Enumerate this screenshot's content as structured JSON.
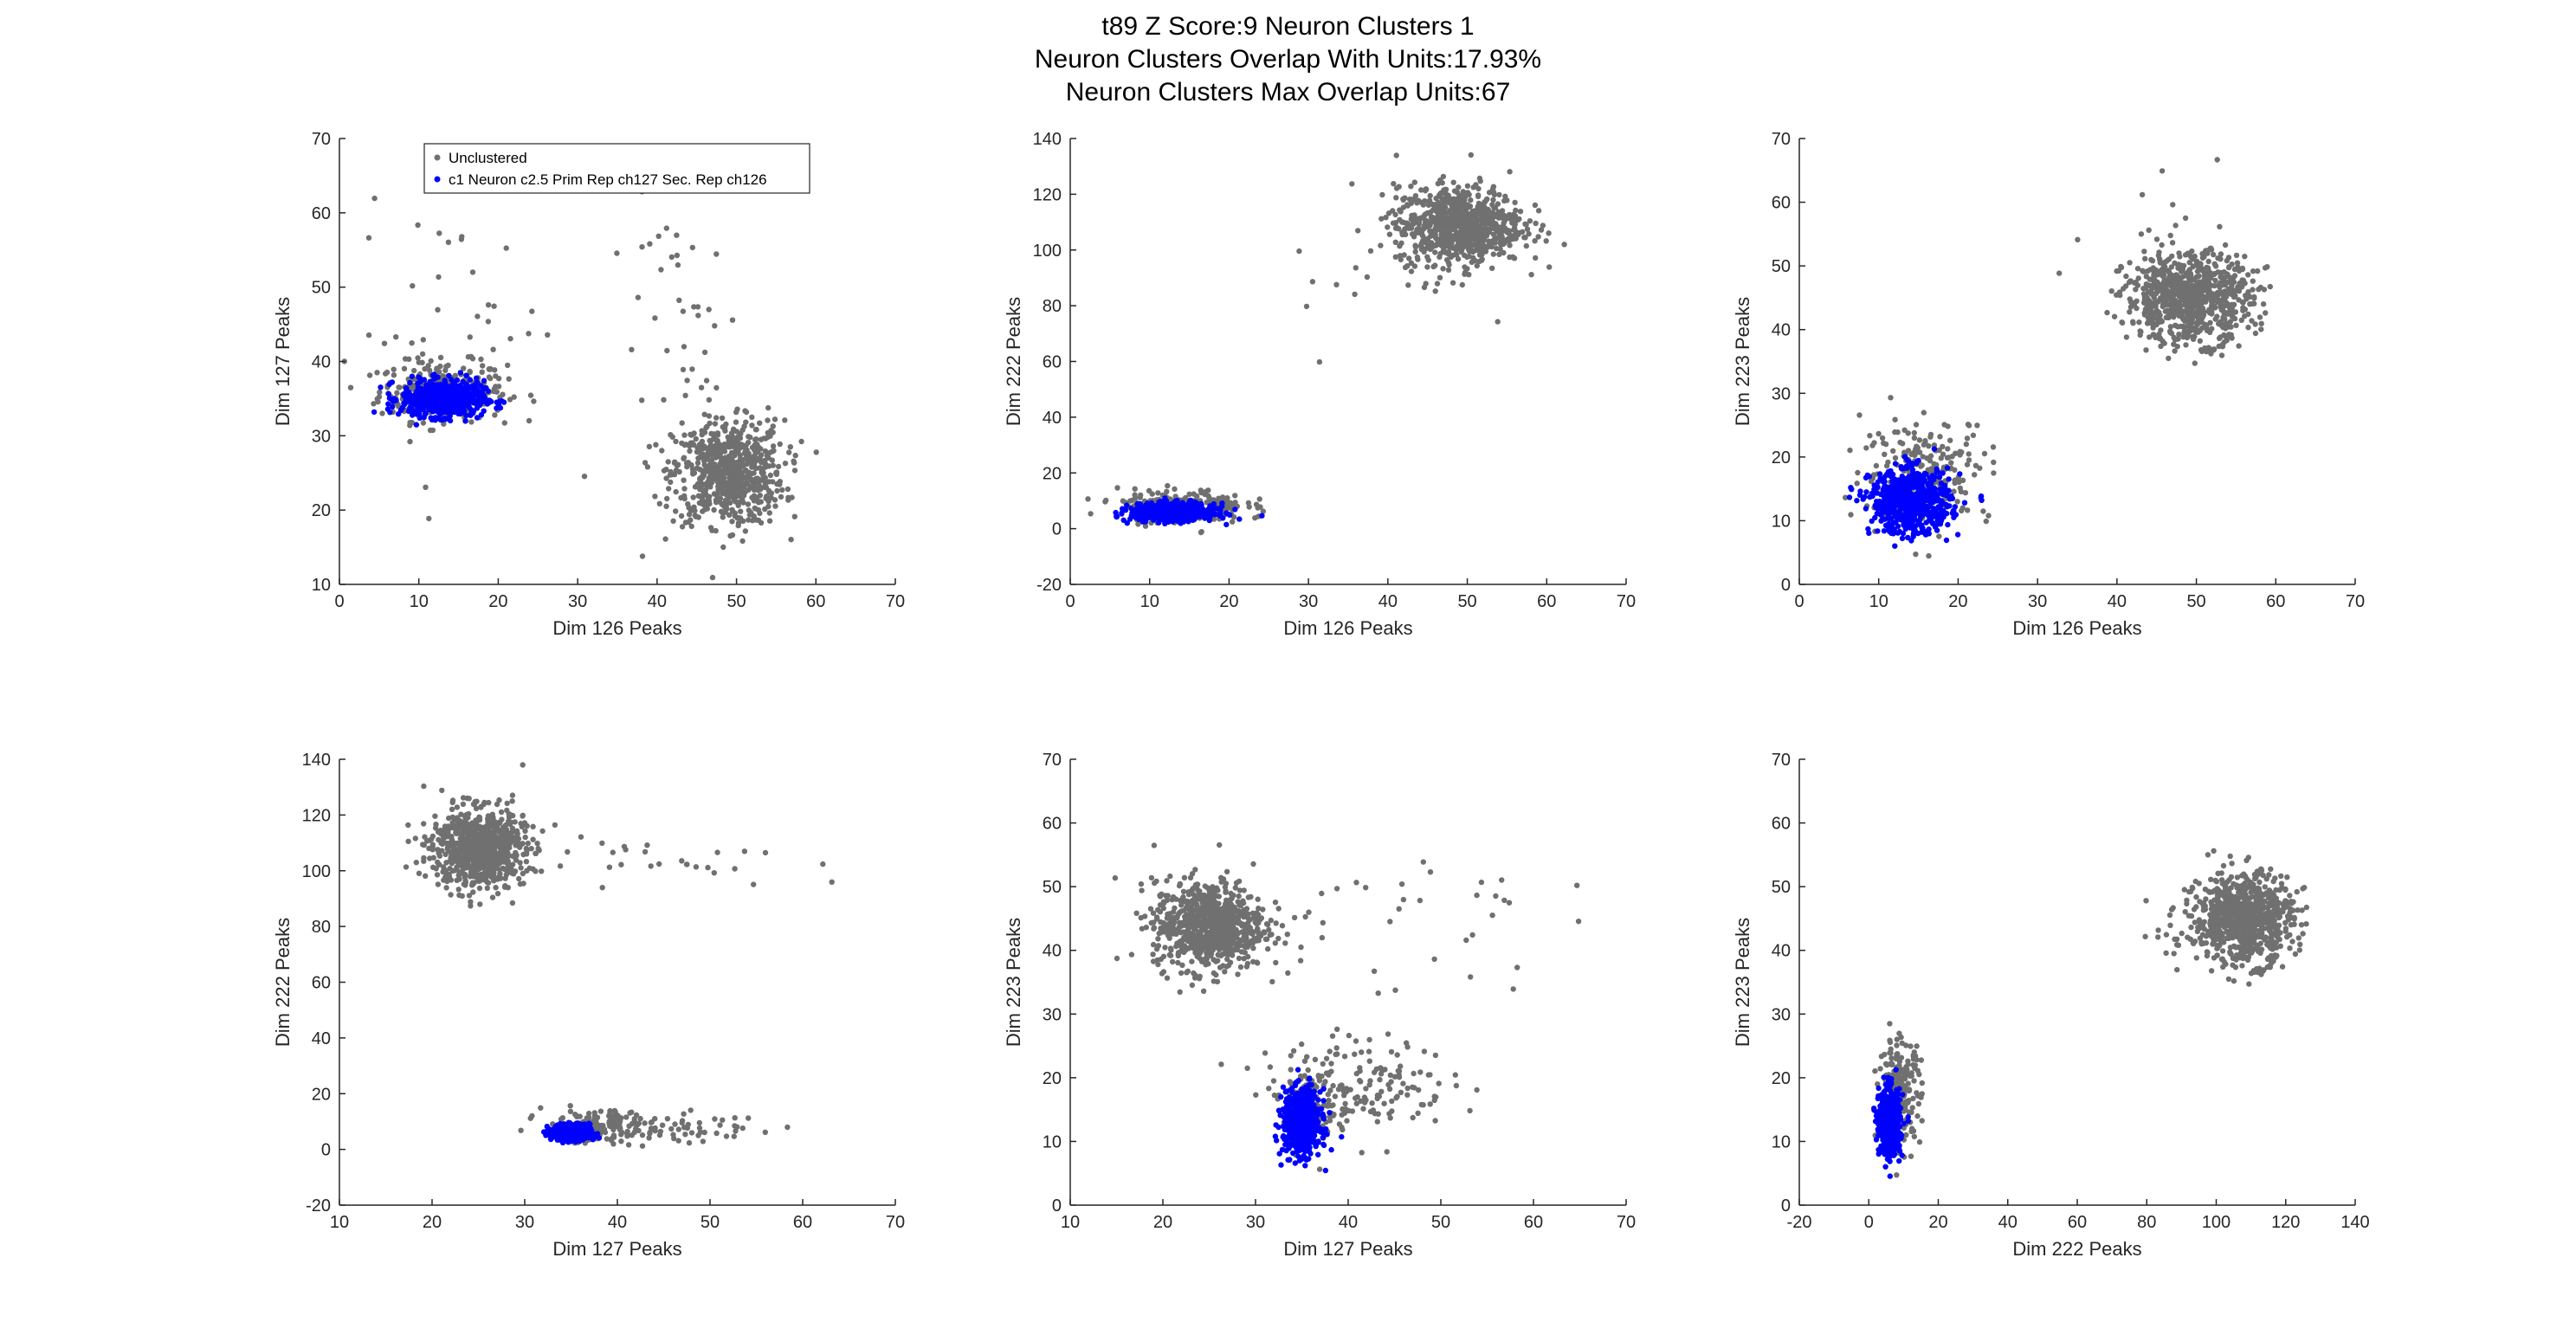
{
  "figure": {
    "title_lines": [
      "t89 Z Score:9 Neuron Clusters 1",
      "Neuron Clusters Overlap With Units:17.93%",
      "Neuron Clusters Max Overlap Units:67"
    ]
  },
  "colors": {
    "unclustered": "#707070",
    "cluster": "#0000ff",
    "axis": "#262626",
    "background": "#ffffff"
  },
  "legend": {
    "location": "top-left of first subplot",
    "entries": [
      "Unclustered",
      "c1 Neuron c2.5 Prim Rep ch127 Sec. Rep ch126"
    ]
  },
  "chart_data": [
    {
      "type": "scatter",
      "xlabel": "Dim 126 Peaks",
      "ylabel": "Dim 127 Peaks",
      "xlim": [
        0,
        70
      ],
      "ylim": [
        10,
        70
      ],
      "xticks": [
        0,
        10,
        20,
        30,
        40,
        50,
        60,
        70
      ],
      "yticks": [
        10,
        20,
        30,
        40,
        50,
        60,
        70
      ],
      "series": [
        {
          "name": "Unclustered",
          "color": "#707070",
          "clusters": [
            {
              "center": [
                13,
                36
              ],
              "spread": [
                4,
                2
              ],
              "n": 300
            },
            {
              "center": [
                49,
                25
              ],
              "spread": [
                3.5,
                3.5
              ],
              "n": 700
            },
            {
              "center": [
                14,
                44
              ],
              "spread": [
                6,
                8
              ],
              "n": 40
            },
            {
              "center": [
                45,
                42
              ],
              "spread": [
                5,
                10
              ],
              "n": 45
            }
          ]
        },
        {
          "name": "c1 Neuron c2.5 Prim Rep ch127 Sec. Rep ch126",
          "color": "#0000ff",
          "clusters": [
            {
              "center": [
                13,
                35
              ],
              "spread": [
                2.6,
                1.2
              ],
              "n": 650
            }
          ]
        }
      ]
    },
    {
      "type": "scatter",
      "xlabel": "Dim 126 Peaks",
      "ylabel": "Dim 222 Peaks",
      "xlim": [
        0,
        70
      ],
      "ylim": [
        -20,
        140
      ],
      "xticks": [
        0,
        10,
        20,
        30,
        40,
        50,
        60,
        70
      ],
      "yticks": [
        -20,
        0,
        20,
        40,
        60,
        80,
        100,
        120,
        140
      ],
      "series": [
        {
          "name": "Unclustered",
          "color": "#707070",
          "clusters": [
            {
              "center": [
                49,
                109
              ],
              "spread": [
                4,
                7
              ],
              "n": 800
            },
            {
              "center": [
                14,
                8
              ],
              "spread": [
                4,
                3
              ],
              "n": 220
            },
            {
              "center": [
                42,
                95
              ],
              "spread": [
                8,
                15
              ],
              "n": 25
            }
          ]
        },
        {
          "name": "c1 Neuron c2.5 Prim Rep ch127 Sec. Rep ch126",
          "color": "#0000ff",
          "clusters": [
            {
              "center": [
                13,
                6
              ],
              "spread": [
                2.6,
                1.5
              ],
              "n": 650
            }
          ]
        }
      ]
    },
    {
      "type": "scatter",
      "xlabel": "Dim 126 Peaks",
      "ylabel": "Dim 223 Peaks",
      "xlim": [
        0,
        70
      ],
      "ylim": [
        0,
        70
      ],
      "xticks": [
        0,
        10,
        20,
        30,
        40,
        50,
        60,
        70
      ],
      "yticks": [
        0,
        10,
        20,
        30,
        40,
        50,
        60,
        70
      ],
      "series": [
        {
          "name": "Unclustered",
          "color": "#707070",
          "clusters": [
            {
              "center": [
                49,
                45
              ],
              "spread": [
                4,
                3.5
              ],
              "n": 800
            },
            {
              "center": [
                16,
                18
              ],
              "spread": [
                4,
                4
              ],
              "n": 230
            },
            {
              "center": [
                50,
                53
              ],
              "spread": [
                8,
                5
              ],
              "n": 20
            }
          ]
        },
        {
          "name": "c1 Neuron c2.5 Prim Rep ch127 Sec. Rep ch126",
          "color": "#0000ff",
          "clusters": [
            {
              "center": [
                14,
                13
              ],
              "spread": [
                2.5,
                2.5
              ],
              "n": 650
            }
          ]
        }
      ]
    },
    {
      "type": "scatter",
      "xlabel": "Dim 127 Peaks",
      "ylabel": "Dim 222 Peaks",
      "xlim": [
        10,
        70
      ],
      "ylim": [
        -20,
        140
      ],
      "xticks": [
        10,
        20,
        30,
        40,
        50,
        60,
        70
      ],
      "yticks": [
        -20,
        0,
        20,
        40,
        60,
        80,
        100,
        120,
        140
      ],
      "series": [
        {
          "name": "Unclustered",
          "color": "#707070",
          "clusters": [
            {
              "center": [
                25,
                108
              ],
              "spread": [
                2.5,
                7
              ],
              "n": 800
            },
            {
              "center": [
                40,
                105
              ],
              "spread": [
                10,
                4
              ],
              "n": 35
            },
            {
              "center": [
                38,
                8
              ],
              "spread": [
                3,
                3
              ],
              "n": 150
            },
            {
              "center": [
                46,
                8
              ],
              "spread": [
                5,
                2.5
              ],
              "n": 60
            }
          ]
        },
        {
          "name": "c1 Neuron c2.5 Prim Rep ch127 Sec. Rep ch126",
          "color": "#0000ff",
          "clusters": [
            {
              "center": [
                35,
                6
              ],
              "spread": [
                1,
                1.4
              ],
              "n": 650
            }
          ]
        }
      ]
    },
    {
      "type": "scatter",
      "xlabel": "Dim 127 Peaks",
      "ylabel": "Dim 223 Peaks",
      "xlim": [
        10,
        70
      ],
      "ylim": [
        0,
        70
      ],
      "xticks": [
        10,
        20,
        30,
        40,
        50,
        60,
        70
      ],
      "yticks": [
        0,
        10,
        20,
        30,
        40,
        50,
        60,
        70
      ],
      "series": [
        {
          "name": "Unclustered",
          "color": "#707070",
          "clusters": [
            {
              "center": [
                25,
                44
              ],
              "spread": [
                3,
                3.5
              ],
              "n": 800
            },
            {
              "center": [
                41,
                19
              ],
              "spread": [
                5,
                3.5
              ],
              "n": 180
            },
            {
              "center": [
                45,
                45
              ],
              "spread": [
                8,
                6
              ],
              "n": 35
            },
            {
              "center": [
                36,
                15
              ],
              "spread": [
                1.5,
                3
              ],
              "n": 80
            }
          ]
        },
        {
          "name": "c1 Neuron c2.5 Prim Rep ch127 Sec. Rep ch126",
          "color": "#0000ff",
          "clusters": [
            {
              "center": [
                35,
                13
              ],
              "spread": [
                1,
                2.5
              ],
              "n": 650
            }
          ]
        }
      ]
    },
    {
      "type": "scatter",
      "xlabel": "Dim 222 Peaks",
      "ylabel": "Dim 223 Peaks",
      "xlim": [
        -20,
        140
      ],
      "ylim": [
        0,
        70
      ],
      "xticks": [
        -20,
        0,
        20,
        40,
        60,
        80,
        100,
        120,
        140
      ],
      "yticks": [
        0,
        10,
        20,
        30,
        40,
        50,
        60,
        70
      ],
      "series": [
        {
          "name": "Unclustered",
          "color": "#707070",
          "clusters": [
            {
              "center": [
                108,
                45
              ],
              "spread": [
                7,
                3.5
              ],
              "n": 800
            },
            {
              "center": [
                9,
                18
              ],
              "spread": [
                3,
                4
              ],
              "n": 200
            },
            {
              "center": [
                90,
                44
              ],
              "spread": [
                6,
                4
              ],
              "n": 25
            }
          ]
        },
        {
          "name": "c1 Neuron c2.5 Prim Rep ch127 Sec. Rep ch126",
          "color": "#0000ff",
          "clusters": [
            {
              "center": [
                6,
                13
              ],
              "spread": [
                1.5,
                2.5
              ],
              "n": 650
            }
          ]
        }
      ]
    }
  ]
}
